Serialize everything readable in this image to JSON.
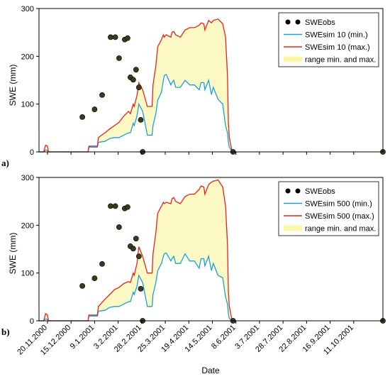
{
  "colors": {
    "obs": "#000000",
    "obs_fill": "#3a3a1e",
    "min": "#1aa0d8",
    "max": "#e8231c",
    "range": "#fdf9c4",
    "range_legend": "#fbf7a6"
  },
  "chart_data": [
    {
      "type": "line",
      "panel_label": "a)",
      "ylabel": "SWE (mm)",
      "ylim": [
        0,
        300
      ],
      "yticks": [
        0,
        100,
        200,
        300
      ],
      "xlim": [
        0,
        365
      ],
      "grid": false,
      "legend_position": "top-right",
      "legend": [
        {
          "label": "SWEobs",
          "kind": "obs"
        },
        {
          "label": "SWEsim 10 (min.)",
          "kind": "min"
        },
        {
          "label": "SWEsim 10 (max.)",
          "kind": "max"
        },
        {
          "label": "range min. and max.",
          "kind": "range"
        }
      ],
      "series": [
        {
          "name": "SWEsim 10 (min.)",
          "role": "min",
          "x": [
            0,
            5,
            7,
            9,
            10,
            12,
            15,
            52,
            53,
            62,
            63,
            70,
            75,
            80,
            85,
            90,
            95,
            97,
            100,
            101,
            104,
            106,
            110,
            115,
            120,
            121,
            124,
            126,
            130,
            132,
            133,
            135,
            140,
            141,
            143,
            145,
            150,
            155,
            160,
            165,
            170,
            172,
            175,
            176,
            180,
            183,
            185,
            190,
            195,
            198,
            200,
            201,
            202,
            205,
            206
          ],
          "y": [
            0,
            0,
            4,
            3,
            0,
            0,
            0,
            0,
            10,
            10,
            20,
            22,
            28,
            30,
            30,
            35,
            40,
            40,
            60,
            55,
            75,
            100,
            85,
            35,
            35,
            55,
            80,
            108,
            125,
            150,
            160,
            162,
            140,
            145,
            150,
            135,
            135,
            150,
            140,
            140,
            130,
            145,
            145,
            130,
            150,
            120,
            135,
            110,
            100,
            55,
            40,
            20,
            10,
            0,
            0
          ]
        },
        {
          "name": "SWEsim 10 (max.)",
          "role": "max",
          "x": [
            0,
            5,
            7,
            9,
            10,
            12,
            15,
            52,
            53,
            62,
            63,
            70,
            75,
            80,
            85,
            90,
            95,
            97,
            100,
            101,
            104,
            106,
            110,
            115,
            120,
            121,
            124,
            126,
            130,
            132,
            133,
            135,
            140,
            141,
            143,
            145,
            150,
            155,
            160,
            165,
            170,
            172,
            175,
            176,
            180,
            183,
            185,
            190,
            195,
            198,
            200,
            201,
            202,
            205,
            206
          ],
          "y": [
            0,
            0,
            14,
            12,
            0,
            0,
            0,
            0,
            12,
            12,
            30,
            40,
            48,
            55,
            62,
            75,
            85,
            80,
            100,
            95,
            118,
            145,
            130,
            95,
            95,
            140,
            180,
            220,
            235,
            245,
            240,
            245,
            240,
            250,
            252,
            245,
            240,
            255,
            260,
            260,
            265,
            270,
            268,
            255,
            275,
            270,
            275,
            278,
            268,
            240,
            160,
            60,
            30,
            0,
            0
          ]
        },
        {
          "name": "SWEobs",
          "x": [
            46,
            59,
            67,
            76,
            81,
            85,
            91,
            94,
            97,
            100,
            103,
            106,
            108,
            110,
            206,
            365
          ],
          "y": [
            73,
            89,
            119,
            240,
            240,
            196,
            235,
            238,
            156,
            151,
            172,
            135,
            67,
            0,
            0,
            0
          ]
        }
      ]
    },
    {
      "type": "line",
      "panel_label": "b)",
      "xlabel": "Date",
      "ylabel": "SWE (mm)",
      "ylim": [
        0,
        300
      ],
      "yticks": [
        0,
        100,
        200,
        300
      ],
      "xlim": [
        0,
        365
      ],
      "grid": false,
      "legend_position": "top-right",
      "x_tick_labels": [
        "20.11.2000",
        "15.12.2000",
        "9.1.2001",
        "3.2.2001",
        "28.2.2001",
        "25.3.2001",
        "19.4.2001",
        "14.5.2001",
        "8.6.2001",
        "3.7.2001",
        "28.7.2001",
        "22.8.2001",
        "16.9.2001",
        "11.10.2001"
      ],
      "x_tick_positions": [
        9,
        34,
        59,
        84,
        109,
        134,
        159,
        184,
        209,
        234,
        259,
        284,
        309,
        334
      ],
      "legend": [
        {
          "label": "SWEobs",
          "kind": "obs"
        },
        {
          "label": "SWEsim 500 (min.)",
          "kind": "min"
        },
        {
          "label": "SWEsim 500 (max.)",
          "kind": "max"
        },
        {
          "label": "range min. and max.",
          "kind": "range"
        }
      ],
      "series": [
        {
          "name": "SWEsim 500 (min.)",
          "role": "min",
          "x": [
            0,
            5,
            7,
            9,
            10,
            12,
            15,
            52,
            53,
            62,
            63,
            70,
            75,
            80,
            85,
            90,
            95,
            97,
            100,
            101,
            104,
            106,
            110,
            115,
            120,
            121,
            124,
            126,
            130,
            132,
            133,
            135,
            140,
            141,
            143,
            145,
            150,
            155,
            160,
            165,
            170,
            172,
            175,
            176,
            180,
            183,
            185,
            190,
            195,
            198,
            200,
            201,
            202,
            205,
            206
          ],
          "y": [
            0,
            0,
            4,
            3,
            0,
            0,
            0,
            0,
            10,
            10,
            20,
            22,
            28,
            30,
            30,
            35,
            40,
            40,
            60,
            55,
            72,
            95,
            80,
            30,
            30,
            55,
            80,
            105,
            120,
            135,
            140,
            142,
            125,
            130,
            135,
            120,
            120,
            140,
            125,
            125,
            110,
            130,
            130,
            115,
            135,
            105,
            120,
            95,
            90,
            50,
            35,
            15,
            5,
            0,
            0
          ]
        },
        {
          "name": "SWEsim 500 (max.)",
          "role": "max",
          "x": [
            0,
            5,
            7,
            9,
            10,
            12,
            15,
            52,
            53,
            62,
            63,
            70,
            75,
            80,
            85,
            90,
            95,
            97,
            100,
            101,
            104,
            106,
            110,
            115,
            120,
            121,
            124,
            126,
            130,
            132,
            133,
            135,
            140,
            141,
            143,
            145,
            150,
            155,
            160,
            165,
            170,
            172,
            175,
            176,
            180,
            183,
            185,
            190,
            195,
            198,
            200,
            201,
            202,
            205,
            206
          ],
          "y": [
            0,
            0,
            15,
            12,
            0,
            0,
            0,
            0,
            12,
            12,
            30,
            45,
            55,
            65,
            70,
            78,
            82,
            80,
            100,
            95,
            120,
            155,
            135,
            100,
            100,
            140,
            185,
            225,
            240,
            248,
            245,
            248,
            245,
            255,
            258,
            250,
            245,
            260,
            265,
            265,
            275,
            282,
            280,
            265,
            285,
            290,
            292,
            295,
            280,
            240,
            160,
            60,
            30,
            0,
            0
          ]
        },
        {
          "name": "SWEobs",
          "x": [
            46,
            59,
            67,
            76,
            81,
            85,
            91,
            94,
            97,
            100,
            103,
            106,
            108,
            110,
            206,
            365
          ],
          "y": [
            73,
            89,
            119,
            240,
            240,
            196,
            235,
            238,
            156,
            151,
            172,
            135,
            67,
            0,
            0,
            0
          ]
        }
      ]
    }
  ]
}
